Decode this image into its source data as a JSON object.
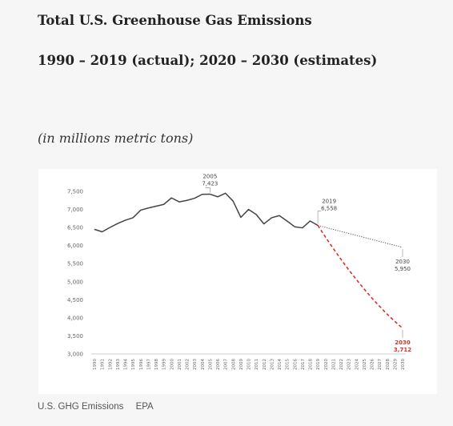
{
  "header": {
    "title": "Total U.S. Greenhouse Gas Emissions",
    "subtitle": "1990 – 2019 (actual); 2020 – 2030 (estimates)",
    "units": "(in millions metric tons)"
  },
  "caption": {
    "left": "U.S. GHG Emissions",
    "right": "EPA"
  },
  "chart_data": {
    "type": "line",
    "title": "Total U.S. Greenhouse Gas Emissions",
    "subtitle": "1990 – 2019 (actual); 2020 – 2030 (estimates)",
    "ylabel": "(in millions metric tons)",
    "xlabel": "",
    "ylim": [
      3000,
      7500
    ],
    "yticks": [
      3000,
      3500,
      4000,
      4500,
      5000,
      5500,
      6000,
      6500,
      7000,
      7500
    ],
    "ytick_labels": [
      "3,000",
      "3,500",
      "4,000",
      "4,500",
      "5,000",
      "5,500",
      "6,000",
      "6,500",
      "7,000",
      "7,500"
    ],
    "x": [
      1990,
      1991,
      1992,
      1993,
      1994,
      1995,
      1996,
      1997,
      1998,
      1999,
      2000,
      2001,
      2002,
      2003,
      2004,
      2005,
      2006,
      2007,
      2008,
      2009,
      2010,
      2011,
      2012,
      2013,
      2014,
      2015,
      2016,
      2017,
      2018,
      2019,
      2020,
      2021,
      2022,
      2023,
      2024,
      2025,
      2026,
      2027,
      2028,
      2029,
      2030
    ],
    "grid": false,
    "legend": "none",
    "series": [
      {
        "style": "solid",
        "color": "#444444",
        "x": [
          1990,
          1991,
          1992,
          1993,
          1994,
          1995,
          1996,
          1997,
          1998,
          1999,
          2000,
          2001,
          2002,
          2003,
          2004,
          2005,
          2006,
          2007,
          2008,
          2009,
          2010,
          2011,
          2012,
          2013,
          2014,
          2015,
          2016,
          2017,
          2018,
          2019
        ],
        "values": [
          6450,
          6380,
          6500,
          6610,
          6700,
          6770,
          6980,
          7040,
          7090,
          7140,
          7320,
          7210,
          7250,
          7310,
          7420,
          7423,
          7350,
          7450,
          7230,
          6780,
          7000,
          6860,
          6600,
          6770,
          6830,
          6680,
          6520,
          6490,
          6680,
          6558
        ]
      },
      {
        "style": "dotted",
        "color": "#555555",
        "x": [
          2019,
          2030
        ],
        "values": [
          6558,
          5950
        ]
      },
      {
        "style": "dashed",
        "color": "#d9302c",
        "x": [
          2019,
          2020,
          2021,
          2022,
          2023,
          2024,
          2025,
          2026,
          2027,
          2028,
          2029,
          2030
        ],
        "values": [
          6558,
          6230,
          5920,
          5620,
          5330,
          5060,
          4800,
          4550,
          4320,
          4100,
          3900,
          3712
        ]
      }
    ],
    "annotations": [
      {
        "x": 2005,
        "y": 7423,
        "year": "2005",
        "value": "7,423",
        "color": "#444444"
      },
      {
        "x": 2019,
        "y": 6558,
        "year": "2019",
        "value": "6,558",
        "color": "#444444"
      },
      {
        "x": 2030,
        "y": 5950,
        "year": "2030",
        "value": "5,950",
        "color": "#444444"
      },
      {
        "x": 2030,
        "y": 3712,
        "year": "2030",
        "value": "3,712",
        "color": "#d9302c"
      }
    ]
  }
}
